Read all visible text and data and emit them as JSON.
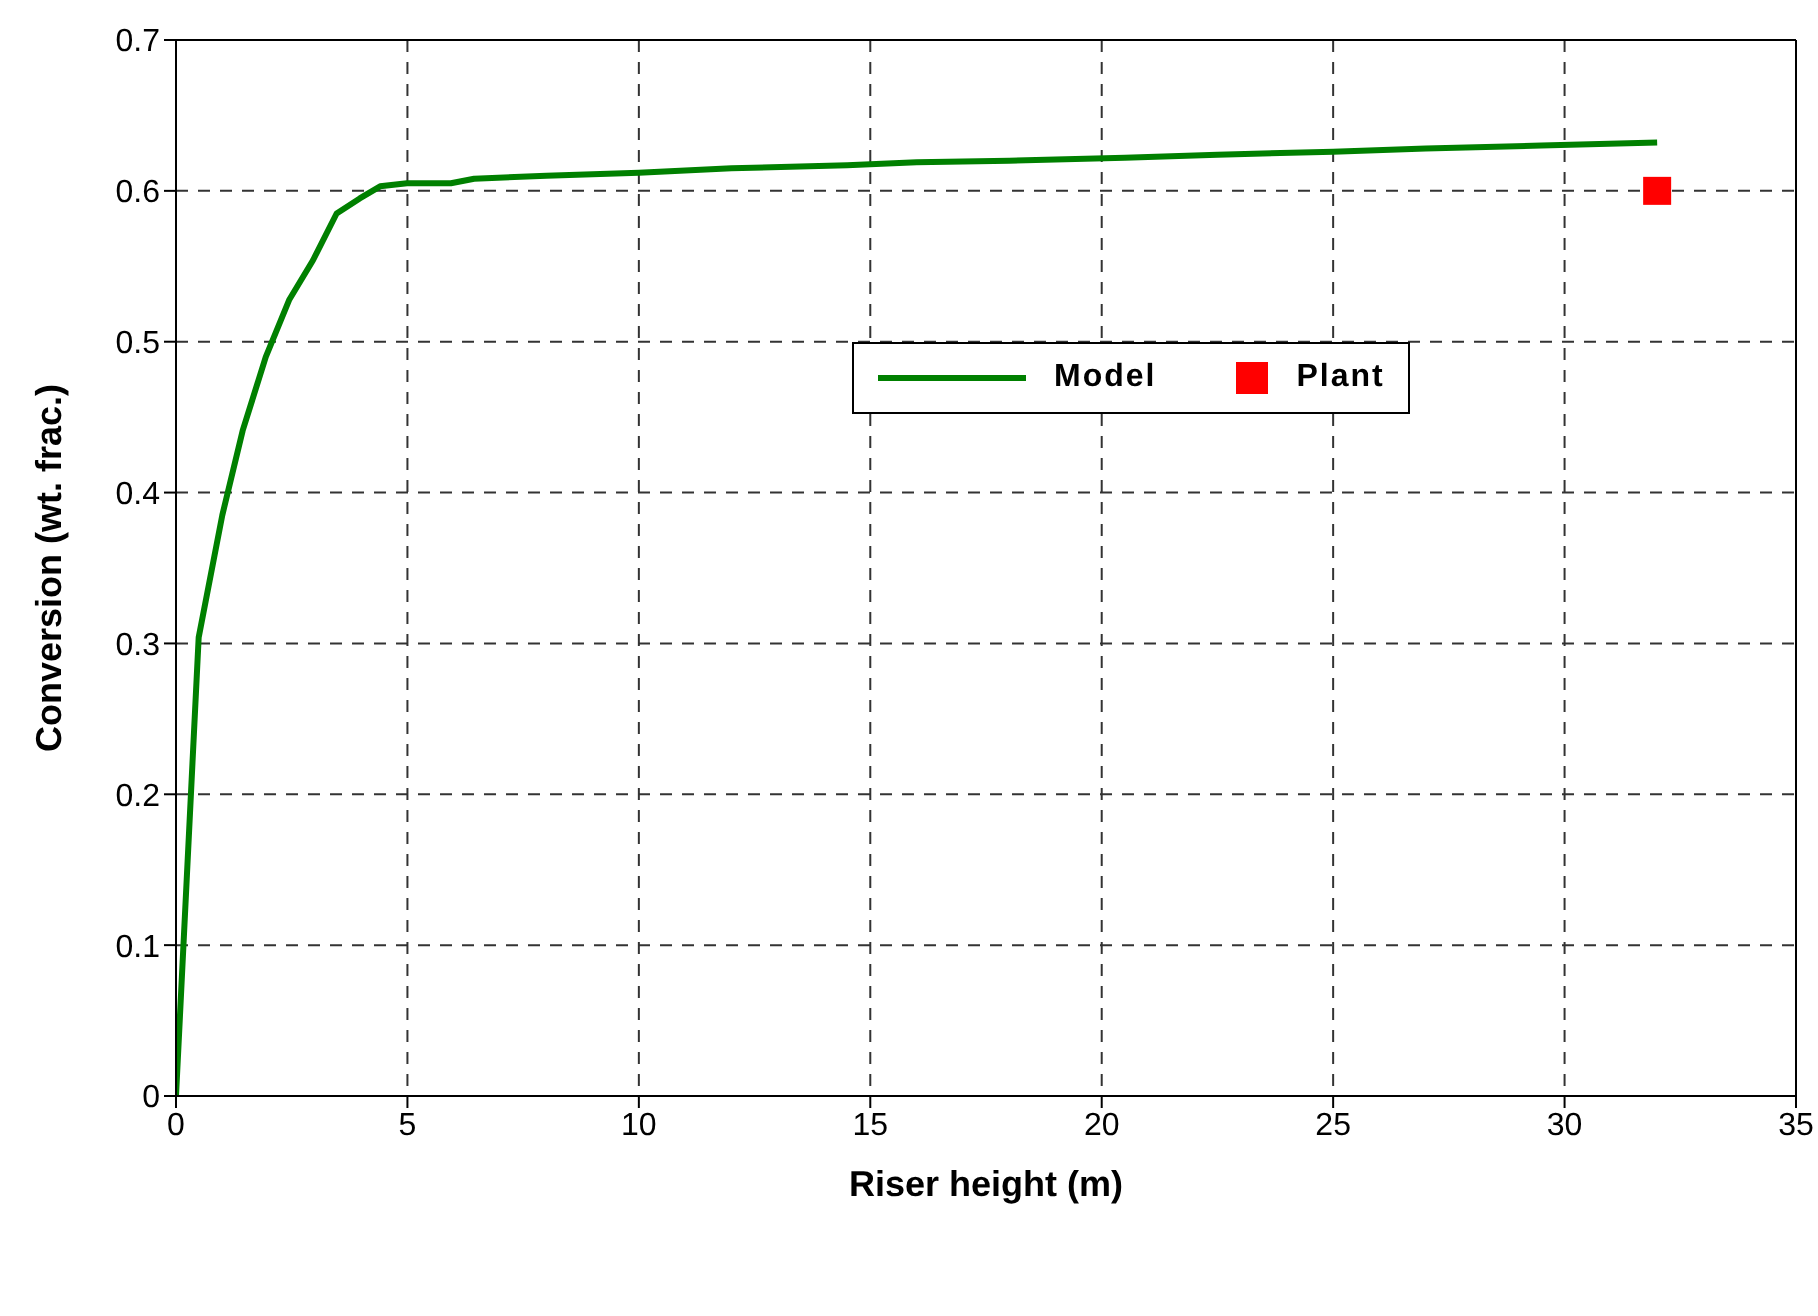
{
  "chart_data": {
    "type": "line",
    "xlabel": "Riser height (m)",
    "ylabel": "Conversion (wt. frac.)",
    "xlim": [
      0,
      35
    ],
    "ylim": [
      0,
      0.7
    ],
    "xticks": [
      0,
      5,
      10,
      15,
      20,
      25,
      30,
      35
    ],
    "yticks": [
      0,
      0.1,
      0.2,
      0.3,
      0.4,
      0.5,
      0.6,
      0.7
    ],
    "grid": true,
    "legend": "right",
    "series": [
      {
        "name": "Model",
        "color": "#008000",
        "marker": "none",
        "line_style": "solid",
        "x": [
          0,
          0.49,
          1.0,
          1.44,
          1.94,
          2.45,
          2.96,
          3.47,
          3.97,
          4.41,
          4.99,
          5.94,
          6.44,
          8,
          10,
          12,
          14.5,
          16,
          18,
          20.5,
          22.5,
          25,
          27,
          29.5,
          32
        ],
        "values": [
          0,
          0.304,
          0.385,
          0.441,
          0.49,
          0.528,
          0.554,
          0.585,
          0.595,
          0.603,
          0.605,
          0.605,
          0.608,
          0.61,
          0.612,
          0.615,
          0.617,
          0.619,
          0.62,
          0.622,
          0.624,
          0.626,
          0.628,
          0.63,
          0.632
        ]
      },
      {
        "name": "Plant",
        "type": "scatter",
        "color": "#ff0000",
        "marker": "square",
        "x": [
          32
        ],
        "values": [
          0.6
        ]
      }
    ]
  }
}
